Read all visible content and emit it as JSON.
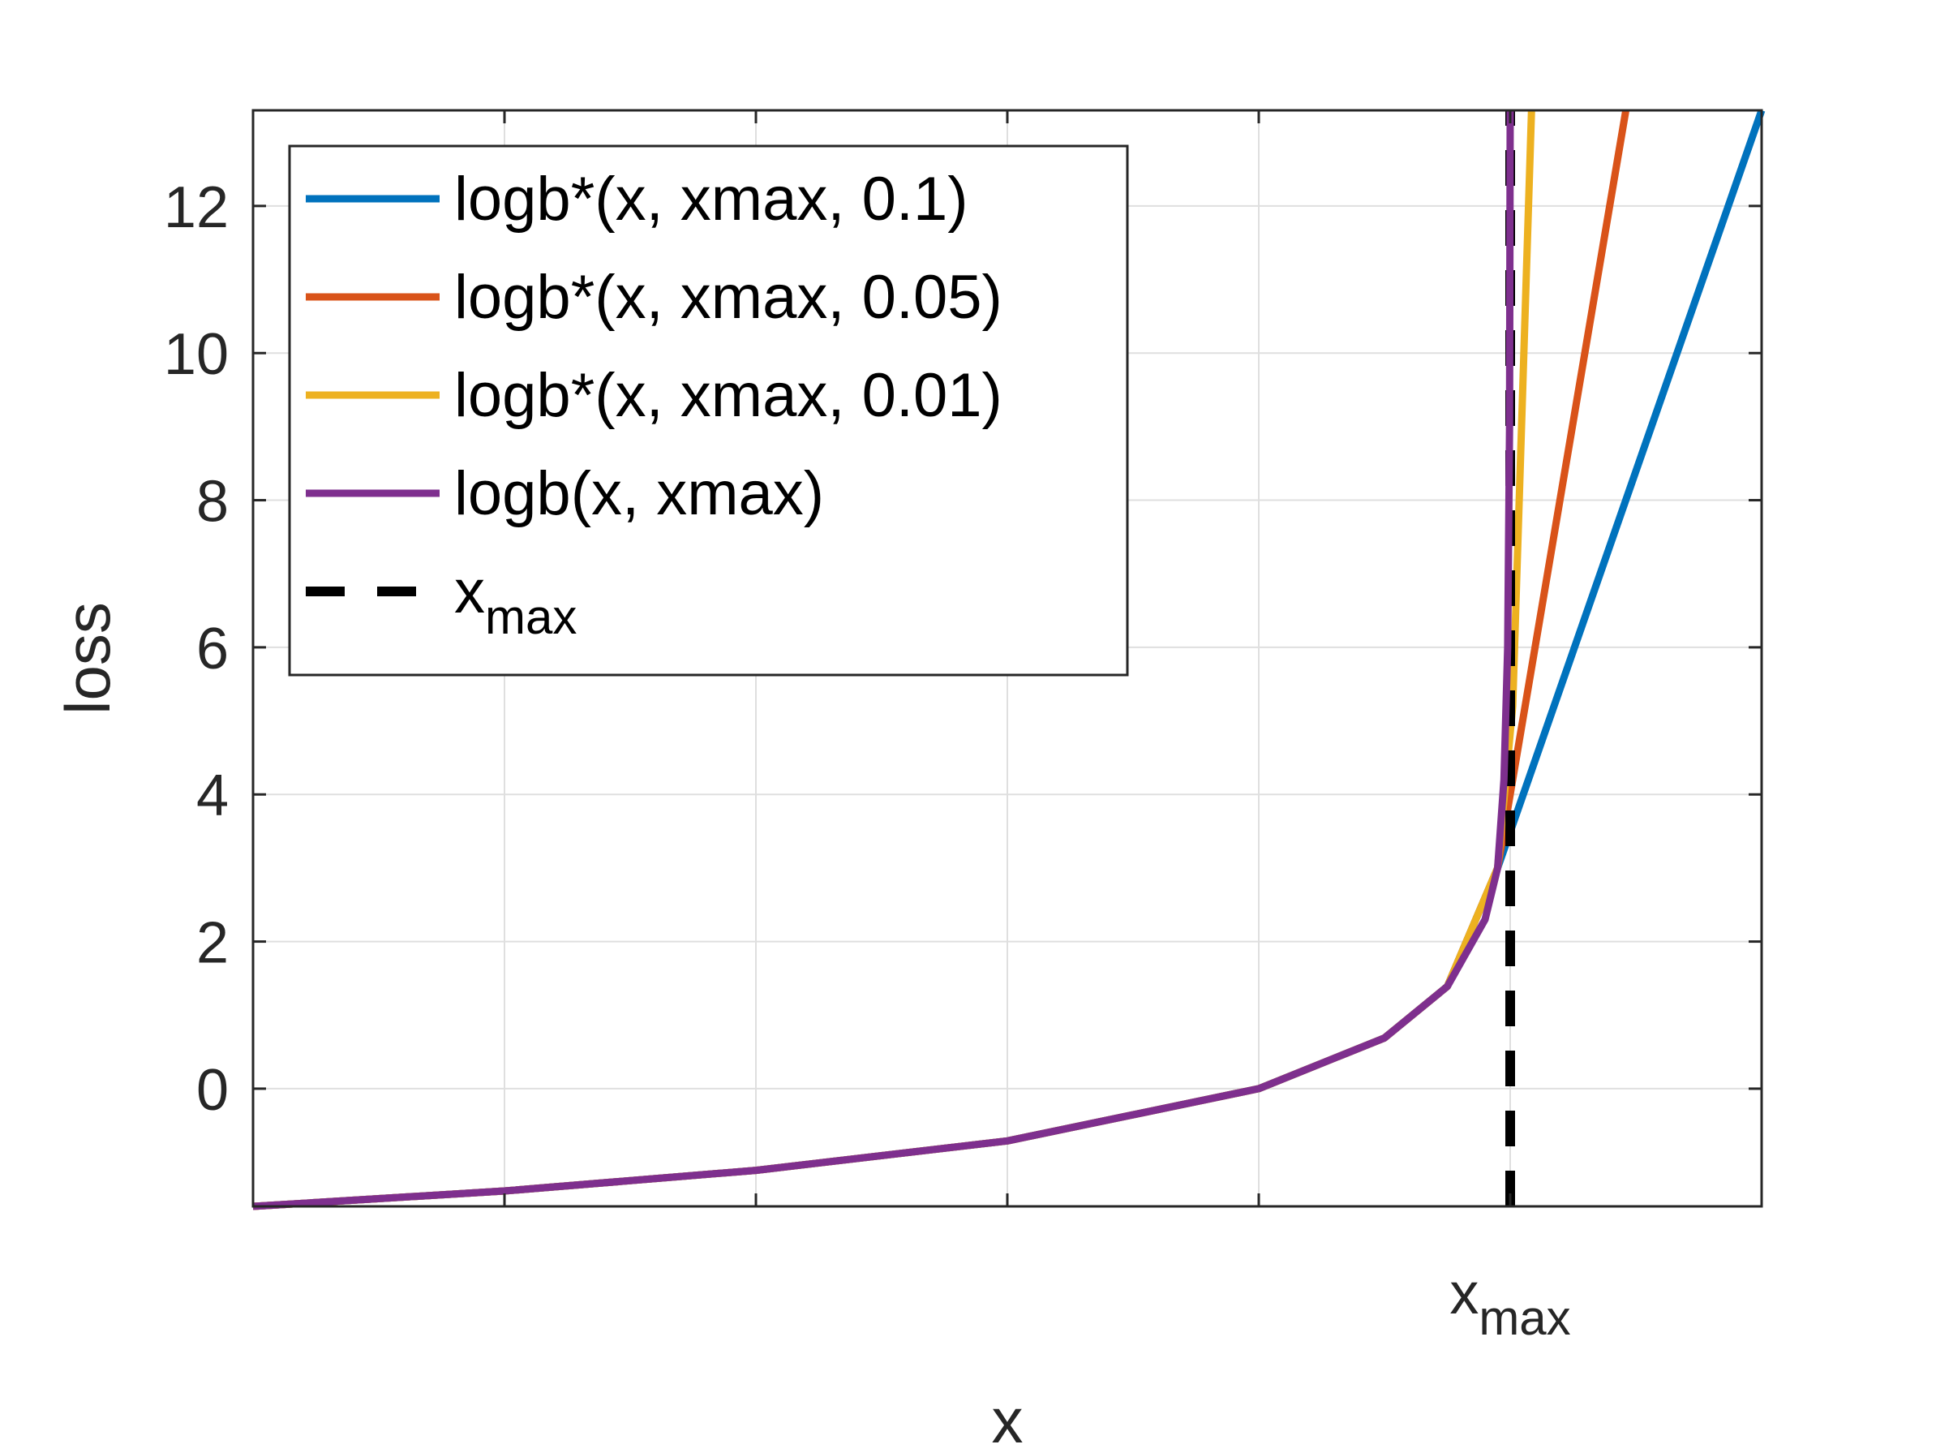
{
  "chart_data": {
    "type": "line",
    "title": "",
    "xlabel": "x",
    "ylabel": "loss",
    "xlim": [
      0,
      1.2
    ],
    "ylim": [
      -1.6,
      13.3
    ],
    "grid": true,
    "legend_position": "top-left",
    "x_ticks": [
      {
        "value": 0.2,
        "label": ""
      },
      {
        "value": 0.4,
        "label": ""
      },
      {
        "value": 0.6,
        "label": ""
      },
      {
        "value": 0.8,
        "label": ""
      },
      {
        "value": 1.0,
        "label": "x",
        "sub": "max"
      }
    ],
    "y_ticks": [
      {
        "value": 0,
        "label": "0"
      },
      {
        "value": 2,
        "label": "2"
      },
      {
        "value": 4,
        "label": "4"
      },
      {
        "value": 6,
        "label": "6"
      },
      {
        "value": 8,
        "label": "8"
      },
      {
        "value": 10,
        "label": "10"
      },
      {
        "value": 12,
        "label": "12"
      }
    ],
    "series": [
      {
        "name": "logb*(x, xmax, 0.1)",
        "color": "#0072BD",
        "dash": "solid",
        "x": [
          0.0,
          0.2,
          0.4,
          0.6,
          0.8,
          0.9,
          0.95,
          0.99,
          1.2
        ],
        "y": [
          -1.6,
          -1.39,
          -1.11,
          -0.71,
          0.0,
          0.69,
          1.39,
          3.0,
          13.3
        ]
      },
      {
        "name": "logb*(x, xmax, 0.05)",
        "color": "#D95319",
        "dash": "solid",
        "x": [
          0.0,
          0.2,
          0.4,
          0.6,
          0.8,
          0.9,
          0.95,
          0.99,
          1.0,
          1.092
        ],
        "y": [
          -1.6,
          -1.39,
          -1.11,
          -0.71,
          0.0,
          0.69,
          1.39,
          3.0,
          4.0,
          13.3
        ]
      },
      {
        "name": "logb*(x, xmax, 0.01)",
        "color": "#EDB120",
        "dash": "solid",
        "x": [
          0.0,
          0.2,
          0.4,
          0.6,
          0.8,
          0.9,
          0.95,
          0.99,
          1.002,
          1.017
        ],
        "y": [
          -1.6,
          -1.39,
          -1.11,
          -0.71,
          0.0,
          0.69,
          1.39,
          3.0,
          5.2,
          13.3
        ]
      },
      {
        "name": "logb(x, xmax)",
        "color": "#7E2F8E",
        "dash": "solid",
        "x": [
          0.0,
          0.2,
          0.4,
          0.6,
          0.8,
          0.9,
          0.95,
          0.98,
          0.99,
          0.995,
          0.998,
          0.9995,
          1.0
        ],
        "y": [
          -1.6,
          -1.39,
          -1.11,
          -0.71,
          0.0,
          0.69,
          1.39,
          2.3,
          3.0,
          4.2,
          6.0,
          9.0,
          13.3
        ]
      },
      {
        "name": "x",
        "name_sub": "max",
        "color": "#000000",
        "dash": "dashed",
        "x": [
          1.0,
          1.0
        ],
        "y": [
          -1.6,
          13.3
        ]
      }
    ]
  }
}
